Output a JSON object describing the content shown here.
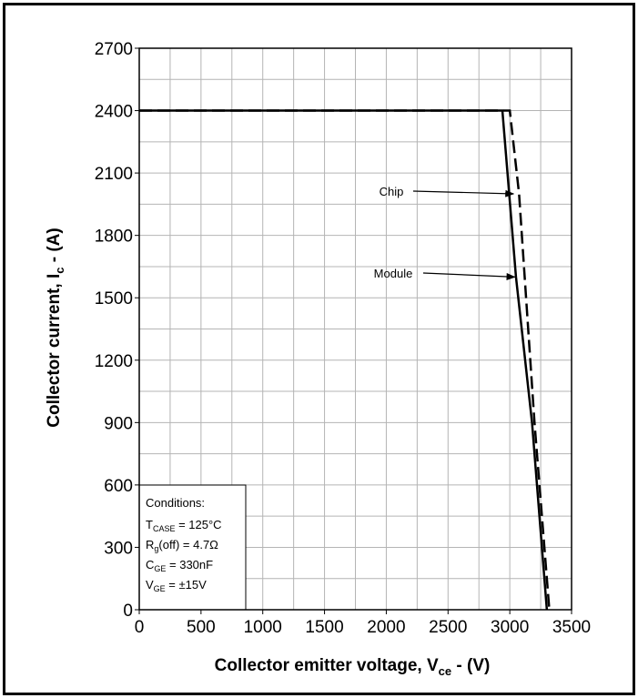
{
  "chart_data": {
    "type": "line",
    "xlabel": {
      "main": "Collector emitter voltage, V",
      "sub": "ce",
      "unit": " - (V)"
    },
    "ylabel": {
      "main": "Collector current, I",
      "sub": "c",
      "unit": " - (A)"
    },
    "xlim": [
      0,
      3500
    ],
    "ylim": [
      0,
      2700
    ],
    "xticks": [
      "0",
      "500",
      "1000",
      "1500",
      "2000",
      "2500",
      "3000",
      "3500"
    ],
    "yticks": [
      "0",
      "300",
      "600",
      "900",
      "1200",
      "1500",
      "1800",
      "2100",
      "2400",
      "2700"
    ],
    "grid": true,
    "series": [
      {
        "name": "Chip",
        "style": "dashed",
        "color": "#000000",
        "x": [
          0,
          3000,
          3075,
          3200,
          3320
        ],
        "y": [
          2400,
          2400,
          2000,
          900,
          0
        ]
      },
      {
        "name": "Module",
        "style": "solid",
        "color": "#000000",
        "x": [
          0,
          2940,
          3050,
          3180,
          3300
        ],
        "y": [
          2400,
          2400,
          1600,
          900,
          0
        ]
      }
    ],
    "annotations": [
      {
        "text": "Chip",
        "arrow_to": {
          "x": 3030,
          "y": 2000
        }
      },
      {
        "text": "Module",
        "arrow_to": {
          "x": 3040,
          "y": 1600
        }
      }
    ],
    "conditions": {
      "heading": "Conditions:",
      "lines": [
        {
          "pre": "T",
          "sub": "CASE",
          "post": " = 125°C"
        },
        {
          "pre": "R",
          "sub": "g",
          "post": "(off) = 4.7Ω"
        },
        {
          "pre": "C",
          "sub": "GE",
          "post": " = 330nF"
        },
        {
          "pre": "V",
          "sub": "GE",
          "post": " = ±15V"
        }
      ]
    }
  }
}
